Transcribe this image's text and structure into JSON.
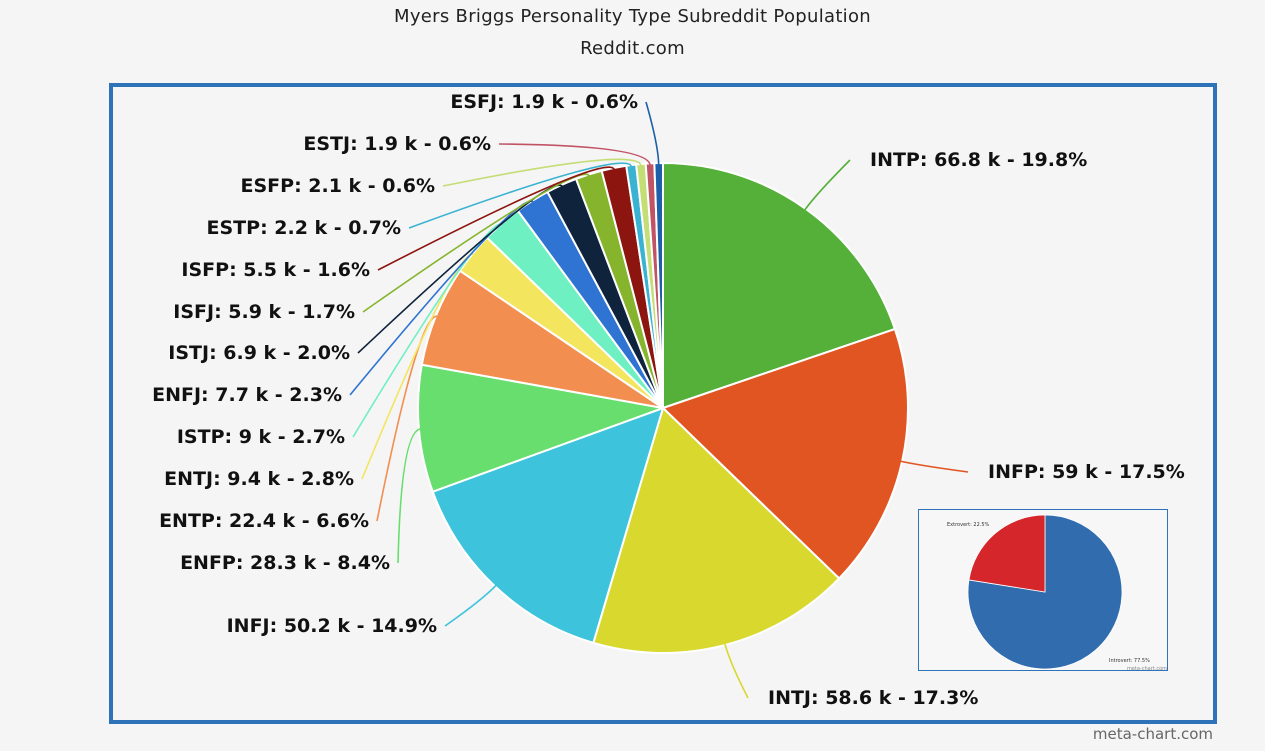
{
  "chart_data": {
    "type": "pie",
    "title": "Myers Briggs Personality Type Subreddit Population",
    "subtitle": "Reddit.com",
    "watermark": "meta-chart.com",
    "slices": [
      {
        "name": "INTP",
        "value_k": 66.8,
        "percent": 19.8,
        "label": "INTP: 66.8 k - 19.8%",
        "color": "#55b039"
      },
      {
        "name": "INFP",
        "value_k": 59,
        "percent": 17.5,
        "label": "INFP: 59 k - 17.5%",
        "color": "#e15522"
      },
      {
        "name": "INTJ",
        "value_k": 58.6,
        "percent": 17.3,
        "label": "INTJ: 58.6 k - 17.3%",
        "color": "#d8d82f"
      },
      {
        "name": "INFJ",
        "value_k": 50.2,
        "percent": 14.9,
        "label": "INFJ: 50.2 k - 14.9%",
        "color": "#3ec3dd"
      },
      {
        "name": "ENFP",
        "value_k": 28.3,
        "percent": 8.4,
        "label": "ENFP: 28.3 k - 8.4%",
        "color": "#68de6e"
      },
      {
        "name": "ENTP",
        "value_k": 22.4,
        "percent": 6.6,
        "label": "ENTP: 22.4 k - 6.6%",
        "color": "#f28e50"
      },
      {
        "name": "ENTJ",
        "value_k": 9.4,
        "percent": 2.8,
        "label": "ENTJ: 9.4 k - 2.8%",
        "color": "#f3e55e"
      },
      {
        "name": "ISTP",
        "value_k": 9,
        "percent": 2.7,
        "label": "ISTP: 9 k - 2.7%",
        "color": "#6ef0c3"
      },
      {
        "name": "ENFJ",
        "value_k": 7.7,
        "percent": 2.3,
        "label": "ENFJ: 7.7 k - 2.3%",
        "color": "#2f74d3"
      },
      {
        "name": "ISTJ",
        "value_k": 6.9,
        "percent": 2.0,
        "label": "ISTJ: 6.9 k - 2.0%",
        "color": "#10233d"
      },
      {
        "name": "ISFJ",
        "value_k": 5.9,
        "percent": 1.7,
        "label": "ISFJ: 5.9 k - 1.7%",
        "color": "#86b52d"
      },
      {
        "name": "ISFP",
        "value_k": 5.5,
        "percent": 1.6,
        "label": "ISFP: 5.5 k - 1.6%",
        "color": "#8c1510"
      },
      {
        "name": "ESTP",
        "value_k": 2.2,
        "percent": 0.7,
        "label": "ESTP: 2.2 k - 0.7%",
        "color": "#3ab3d3"
      },
      {
        "name": "ESFP",
        "value_k": 2.1,
        "percent": 0.6,
        "label": "ESFP: 2.1 k - 0.6%",
        "color": "#c4de76"
      },
      {
        "name": "ESTJ",
        "value_k": 1.9,
        "percent": 0.6,
        "label": "ESTJ: 1.9 k - 0.6%",
        "color": "#c05464"
      },
      {
        "name": "ESFJ",
        "value_k": 1.9,
        "percent": 0.6,
        "label": "ESFJ: 1.9 k - 0.6%",
        "color": "#1d5fa8"
      }
    ],
    "inset": {
      "type": "pie",
      "slices": [
        {
          "name": "Introvert",
          "percent": 77.5,
          "label": "Introvert: 77.5%",
          "color": "#306cae"
        },
        {
          "name": "Extrovert",
          "percent": 22.5,
          "label": "Extrovert: 22.5%",
          "color": "#d4262b"
        }
      ],
      "watermark": "meta-chart.com"
    }
  }
}
